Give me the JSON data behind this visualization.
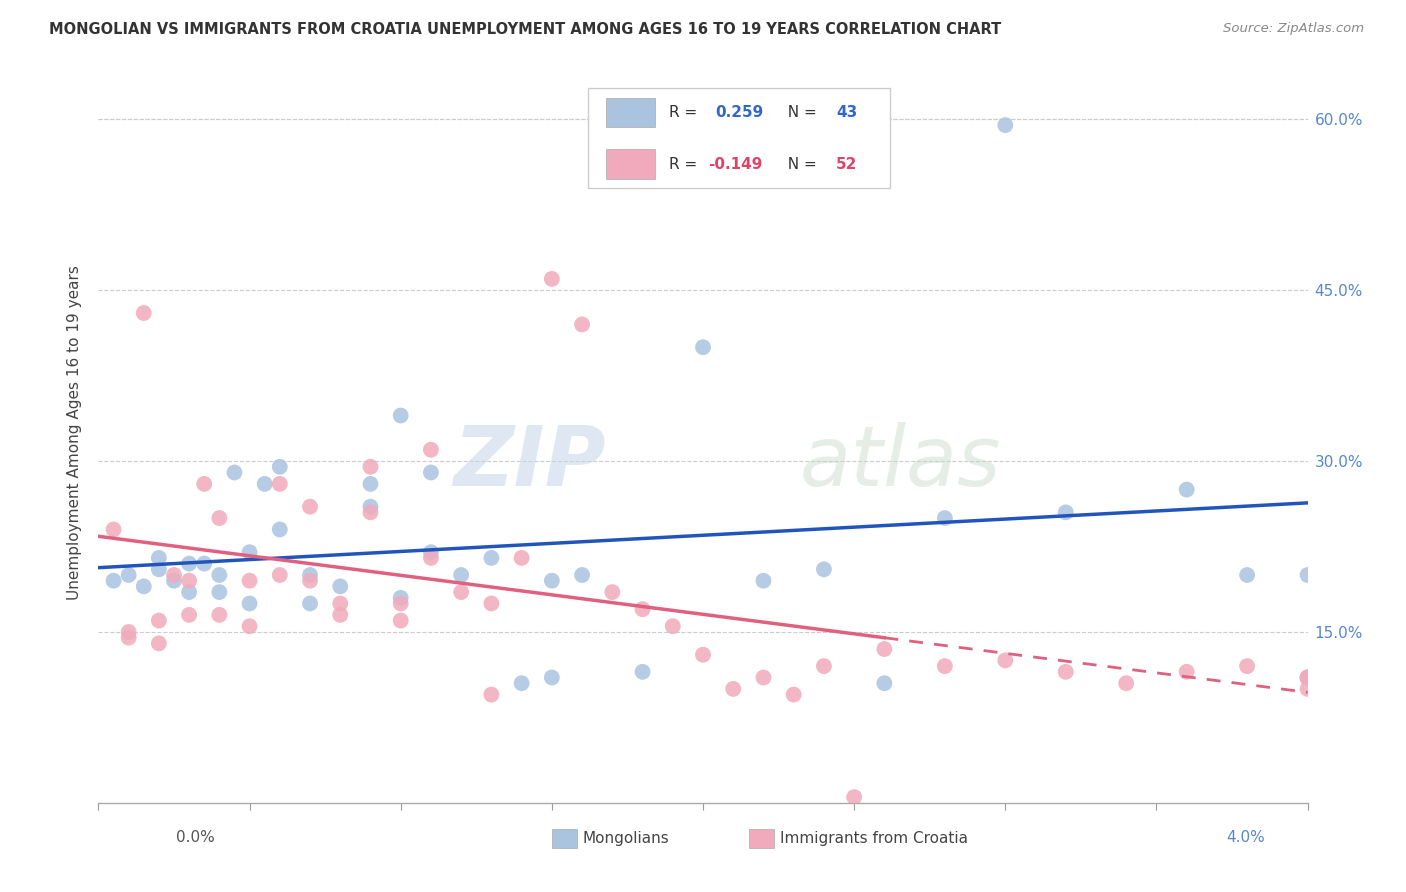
{
  "title": "MONGOLIAN VS IMMIGRANTS FROM CROATIA UNEMPLOYMENT AMONG AGES 16 TO 19 YEARS CORRELATION CHART",
  "source": "Source: ZipAtlas.com",
  "ylabel": "Unemployment Among Ages 16 to 19 years",
  "ytick_labels": [
    "15.0%",
    "30.0%",
    "45.0%",
    "60.0%"
  ],
  "ytick_values": [
    0.15,
    0.3,
    0.45,
    0.6
  ],
  "mongolian_color": "#aac4e0",
  "croatia_color": "#f0aabb",
  "mongolian_line_color": "#2255bb",
  "croatia_line_color": "#e06080",
  "R_mongolian": 0.259,
  "N_mongolian": 43,
  "R_croatia": -0.149,
  "N_croatia": 52,
  "legend_mongolians": "Mongolians",
  "legend_croatia": "Immigrants from Croatia",
  "watermark_zip": "ZIP",
  "watermark_atlas": "atlas",
  "xlim": [
    0.0,
    0.04
  ],
  "ylim": [
    0.0,
    0.65
  ],
  "mongolian_x": [
    0.0005,
    0.001,
    0.0015,
    0.002,
    0.002,
    0.0025,
    0.003,
    0.003,
    0.0035,
    0.004,
    0.004,
    0.0045,
    0.005,
    0.005,
    0.0055,
    0.006,
    0.006,
    0.007,
    0.007,
    0.008,
    0.009,
    0.009,
    0.01,
    0.01,
    0.011,
    0.011,
    0.012,
    0.013,
    0.014,
    0.015,
    0.015,
    0.016,
    0.018,
    0.02,
    0.022,
    0.024,
    0.026,
    0.028,
    0.03,
    0.032,
    0.036,
    0.038,
    0.04
  ],
  "mongolian_y": [
    0.195,
    0.2,
    0.19,
    0.205,
    0.215,
    0.195,
    0.185,
    0.21,
    0.21,
    0.185,
    0.2,
    0.29,
    0.22,
    0.175,
    0.28,
    0.295,
    0.24,
    0.2,
    0.175,
    0.19,
    0.26,
    0.28,
    0.34,
    0.18,
    0.29,
    0.22,
    0.2,
    0.215,
    0.105,
    0.11,
    0.195,
    0.2,
    0.115,
    0.4,
    0.195,
    0.205,
    0.105,
    0.25,
    0.595,
    0.255,
    0.275,
    0.2,
    0.2
  ],
  "croatia_x": [
    0.0005,
    0.001,
    0.001,
    0.0015,
    0.002,
    0.002,
    0.0025,
    0.003,
    0.003,
    0.0035,
    0.004,
    0.004,
    0.005,
    0.005,
    0.006,
    0.006,
    0.007,
    0.007,
    0.008,
    0.008,
    0.009,
    0.009,
    0.01,
    0.01,
    0.011,
    0.011,
    0.012,
    0.013,
    0.013,
    0.014,
    0.015,
    0.016,
    0.017,
    0.018,
    0.019,
    0.02,
    0.021,
    0.022,
    0.023,
    0.024,
    0.025,
    0.026,
    0.028,
    0.03,
    0.032,
    0.034,
    0.036,
    0.038,
    0.04,
    0.04,
    0.04,
    0.04
  ],
  "croatia_y": [
    0.24,
    0.145,
    0.15,
    0.43,
    0.14,
    0.16,
    0.2,
    0.195,
    0.165,
    0.28,
    0.25,
    0.165,
    0.195,
    0.155,
    0.2,
    0.28,
    0.26,
    0.195,
    0.175,
    0.165,
    0.255,
    0.295,
    0.175,
    0.16,
    0.31,
    0.215,
    0.185,
    0.175,
    0.095,
    0.215,
    0.46,
    0.42,
    0.185,
    0.17,
    0.155,
    0.13,
    0.1,
    0.11,
    0.095,
    0.12,
    0.005,
    0.135,
    0.12,
    0.125,
    0.115,
    0.105,
    0.115,
    0.12,
    0.11,
    0.11,
    0.11,
    0.1
  ]
}
